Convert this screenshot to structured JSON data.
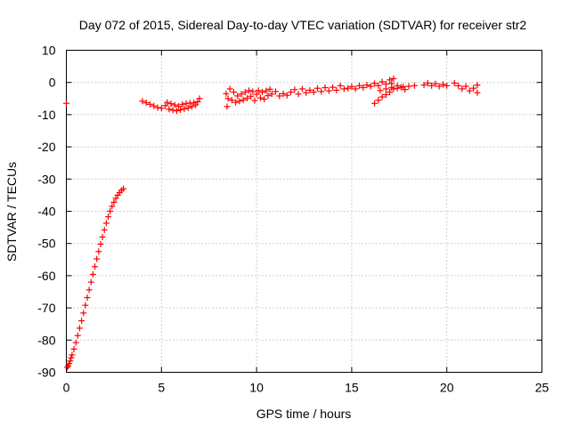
{
  "chart_data": {
    "type": "scatter",
    "title": "Day 072 of 2015, Sidereal Day-to-day VTEC variation (SDTVAR) for receiver str2",
    "xlabel": "GPS time / hours",
    "ylabel": "SDTVAR / TECUs",
    "xlim": [
      0,
      25
    ],
    "ylim": [
      -90,
      10
    ],
    "xticks": [
      0,
      5,
      10,
      15,
      20,
      25
    ],
    "yticks": [
      -90,
      -80,
      -70,
      -60,
      -50,
      -40,
      -30,
      -20,
      -10,
      0,
      10
    ],
    "grid": true,
    "legend": "none",
    "marker": "plus",
    "color": "#ff0000",
    "series": [
      {
        "points": [
          [
            0.0,
            -6.5
          ],
          [
            0.05,
            -88.5
          ],
          [
            0.1,
            -88.0
          ],
          [
            0.15,
            -87.3
          ],
          [
            0.2,
            -86.5
          ],
          [
            0.25,
            -85.5
          ],
          [
            0.3,
            -84.6
          ],
          [
            0.4,
            -82.8
          ],
          [
            0.5,
            -80.8
          ],
          [
            0.6,
            -78.6
          ],
          [
            0.7,
            -76.3
          ],
          [
            0.8,
            -74.0
          ],
          [
            0.9,
            -71.6
          ],
          [
            1.0,
            -69.2
          ],
          [
            1.1,
            -66.8
          ],
          [
            1.2,
            -64.4
          ],
          [
            1.3,
            -62.0
          ],
          [
            1.4,
            -59.6
          ],
          [
            1.5,
            -57.2
          ],
          [
            1.6,
            -54.8
          ],
          [
            1.7,
            -52.5
          ],
          [
            1.8,
            -50.2
          ],
          [
            1.9,
            -48.0
          ],
          [
            2.0,
            -45.8
          ],
          [
            2.1,
            -43.7
          ],
          [
            2.2,
            -41.7
          ],
          [
            2.3,
            -40.0
          ],
          [
            2.4,
            -38.5
          ],
          [
            2.5,
            -37.2
          ],
          [
            2.6,
            -36.0
          ],
          [
            2.7,
            -35.0
          ],
          [
            2.8,
            -34.2
          ],
          [
            2.9,
            -33.5
          ],
          [
            3.0,
            -33.0
          ],
          [
            4.0,
            -5.8
          ],
          [
            4.2,
            -6.3
          ],
          [
            4.4,
            -6.8
          ],
          [
            4.6,
            -7.3
          ],
          [
            4.8,
            -7.8
          ],
          [
            5.0,
            -8.0
          ],
          [
            5.2,
            -7.2
          ],
          [
            5.3,
            -6.2
          ],
          [
            5.4,
            -8.3
          ],
          [
            5.5,
            -6.6
          ],
          [
            5.6,
            -8.6
          ],
          [
            5.7,
            -7.0
          ],
          [
            5.8,
            -8.8
          ],
          [
            5.9,
            -7.4
          ],
          [
            6.0,
            -8.5
          ],
          [
            6.1,
            -6.8
          ],
          [
            6.2,
            -8.2
          ],
          [
            6.3,
            -6.5
          ],
          [
            6.4,
            -7.9
          ],
          [
            6.5,
            -6.4
          ],
          [
            6.6,
            -7.5
          ],
          [
            6.7,
            -6.3
          ],
          [
            6.8,
            -7.0
          ],
          [
            6.9,
            -6.0
          ],
          [
            7.0,
            -5.0
          ],
          [
            8.4,
            -3.5
          ],
          [
            8.45,
            -7.5
          ],
          [
            8.5,
            -5.0
          ],
          [
            8.6,
            -2.0
          ],
          [
            8.7,
            -5.5
          ],
          [
            8.8,
            -3.0
          ],
          [
            8.9,
            -6.2
          ],
          [
            9.0,
            -4.2
          ],
          [
            9.1,
            -5.8
          ],
          [
            9.2,
            -3.6
          ],
          [
            9.3,
            -5.4
          ],
          [
            9.4,
            -3.0
          ],
          [
            9.5,
            -4.9
          ],
          [
            9.6,
            -2.5
          ],
          [
            9.7,
            -4.3
          ],
          [
            9.8,
            -2.8
          ],
          [
            9.9,
            -5.6
          ],
          [
            10.0,
            -3.7
          ],
          [
            10.1,
            -2.5
          ],
          [
            10.2,
            -4.8
          ],
          [
            10.3,
            -3.0
          ],
          [
            10.4,
            -5.2
          ],
          [
            10.5,
            -2.6
          ],
          [
            10.6,
            -4.1
          ],
          [
            10.7,
            -2.1
          ],
          [
            10.8,
            -3.6
          ],
          [
            11.0,
            -2.8
          ],
          [
            11.2,
            -4.2
          ],
          [
            11.4,
            -3.5
          ],
          [
            11.6,
            -4.0
          ],
          [
            11.8,
            -3.0
          ],
          [
            12.0,
            -2.2
          ],
          [
            12.2,
            -3.6
          ],
          [
            12.4,
            -2.0
          ],
          [
            12.6,
            -3.2
          ],
          [
            12.8,
            -2.4
          ],
          [
            13.0,
            -3.0
          ],
          [
            13.2,
            -1.8
          ],
          [
            13.4,
            -2.8
          ],
          [
            13.6,
            -1.6
          ],
          [
            13.8,
            -2.6
          ],
          [
            14.0,
            -1.5
          ],
          [
            14.2,
            -2.4
          ],
          [
            14.4,
            -1.0
          ],
          [
            14.6,
            -2.0
          ],
          [
            14.8,
            -1.8
          ],
          [
            15.0,
            -1.3
          ],
          [
            15.2,
            -2.0
          ],
          [
            15.4,
            -1.0
          ],
          [
            15.6,
            -1.6
          ],
          [
            15.8,
            -0.8
          ],
          [
            16.0,
            -1.2
          ],
          [
            16.2,
            -0.3
          ],
          [
            16.4,
            -1.0
          ],
          [
            16.6,
            0.2
          ],
          [
            16.8,
            -0.5
          ],
          [
            17.0,
            0.8
          ],
          [
            17.2,
            1.2
          ],
          [
            17.1,
            -0.3
          ],
          [
            16.2,
            -6.5
          ],
          [
            16.4,
            -5.5
          ],
          [
            16.6,
            -4.5
          ],
          [
            16.8,
            -3.8
          ],
          [
            17.0,
            -3.0
          ],
          [
            17.2,
            -2.0
          ],
          [
            17.4,
            -1.8
          ],
          [
            17.6,
            -1.5
          ],
          [
            17.8,
            -2.2
          ],
          [
            18.0,
            -1.2
          ],
          [
            16.5,
            -2.5
          ],
          [
            16.8,
            -2.0
          ],
          [
            17.1,
            -1.6
          ],
          [
            17.4,
            -1.0
          ],
          [
            17.7,
            -1.3
          ],
          [
            18.3,
            -1.0
          ],
          [
            18.8,
            -0.8
          ],
          [
            19.0,
            -0.2
          ],
          [
            19.2,
            -1.0
          ],
          [
            19.4,
            -0.4
          ],
          [
            19.6,
            -1.2
          ],
          [
            19.8,
            -0.6
          ],
          [
            20.0,
            -1.0
          ],
          [
            20.4,
            -0.2
          ],
          [
            20.6,
            -1.0
          ],
          [
            20.8,
            -2.0
          ],
          [
            21.0,
            -1.2
          ],
          [
            21.2,
            -2.6
          ],
          [
            21.4,
            -1.8
          ],
          [
            21.6,
            -3.2
          ],
          [
            21.6,
            -0.8
          ]
        ]
      }
    ]
  }
}
